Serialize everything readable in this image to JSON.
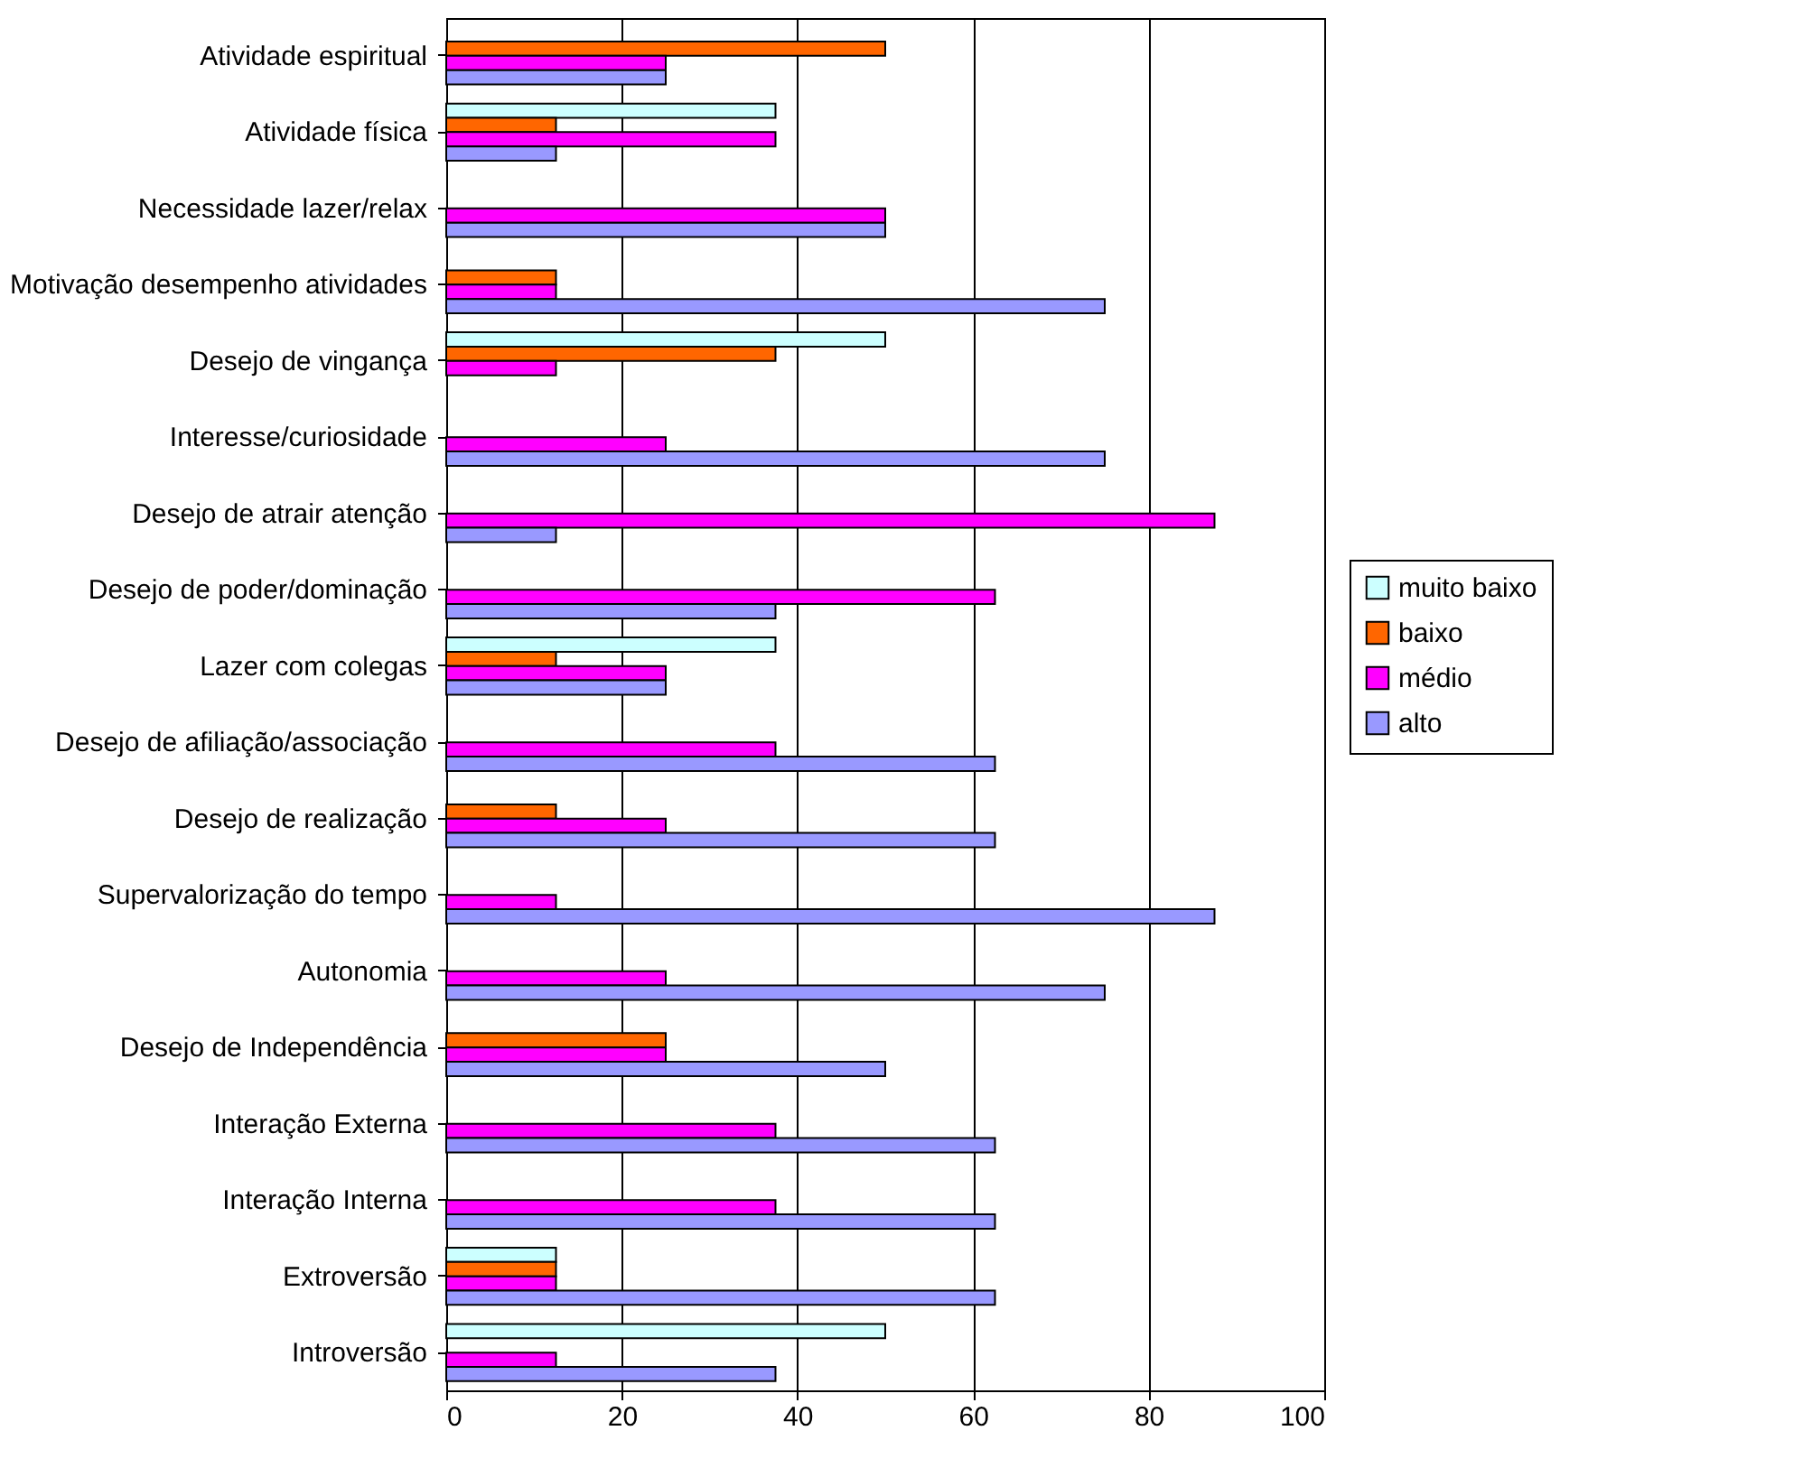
{
  "chart_data": {
    "type": "bar",
    "orientation": "horizontal",
    "categories": [
      "Atividade espiritual",
      "Atividade física",
      "Necessidade lazer/relax",
      "Motivação desempenho atividades",
      "Desejo de vingança",
      "Interesse/curiosidade",
      "Desejo de atrair atenção",
      "Desejo de poder/dominação",
      "Lazer com colegas",
      "Desejo de afiliação/associação",
      "Desejo de realização",
      "Supervalorização do tempo",
      "Autonomia",
      "Desejo de Independência",
      "Interação Externa",
      "Interação Interna",
      "Extroversão",
      "Introversão"
    ],
    "series": [
      {
        "name": "muito baixo",
        "color": "#ccffff",
        "values": [
          null,
          37.5,
          null,
          null,
          50,
          null,
          null,
          null,
          37.5,
          null,
          null,
          null,
          null,
          null,
          null,
          null,
          12.5,
          50
        ]
      },
      {
        "name": "baixo",
        "color": "#ff6600",
        "values": [
          50,
          12.5,
          null,
          12.5,
          37.5,
          null,
          null,
          null,
          12.5,
          null,
          12.5,
          null,
          null,
          25,
          null,
          null,
          12.5,
          null
        ]
      },
      {
        "name": "médio",
        "color": "#ff00ff",
        "values": [
          25,
          37.5,
          50,
          12.5,
          12.5,
          25,
          87.5,
          62.5,
          25,
          37.5,
          25,
          12.5,
          25,
          25,
          37.5,
          37.5,
          12.5,
          12.5
        ]
      },
      {
        "name": "alto",
        "color": "#9999ff",
        "values": [
          25,
          12.5,
          50,
          75,
          null,
          75,
          12.5,
          37.5,
          25,
          62.5,
          62.5,
          87.5,
          75,
          50,
          62.5,
          62.5,
          62.5,
          37.5
        ]
      }
    ],
    "xlim": [
      0,
      100
    ],
    "xticks": [
      0,
      20,
      40,
      60,
      80,
      100
    ],
    "grid": "x",
    "legend": "right"
  }
}
